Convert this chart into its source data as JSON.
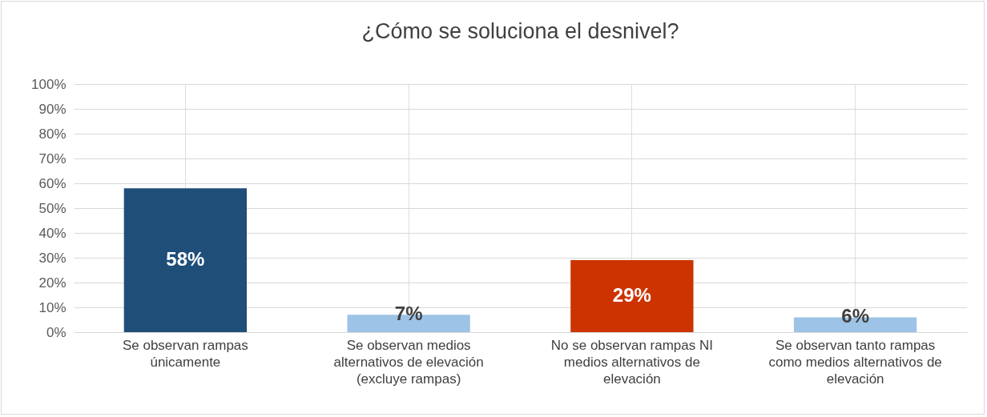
{
  "chart_data": {
    "type": "bar",
    "title": "¿Cómo se soluciona el desnivel?",
    "categories": [
      "Se observan rampas únicamente",
      "Se observan medios alternativos de elevación (excluye rampas)",
      "No se observan rampas NI medios alternativos de elevación",
      "Se observan tanto rampas como medios alternativos de elevación"
    ],
    "values": [
      58,
      7,
      29,
      6
    ],
    "colors": [
      "#1f4e79",
      "#9dc3e6",
      "#cc3300",
      "#9dc3e6"
    ],
    "value_labels": [
      "58%",
      "7%",
      "29%",
      "6%"
    ],
    "ylim": [
      0,
      100
    ],
    "yticks": [
      {
        "value": 0,
        "label": "0%"
      },
      {
        "value": 10,
        "label": "10%"
      },
      {
        "value": 20,
        "label": "20%"
      },
      {
        "value": 30,
        "label": "30%"
      },
      {
        "value": 40,
        "label": "40%"
      },
      {
        "value": 50,
        "label": "50%"
      },
      {
        "value": 60,
        "label": "60%"
      },
      {
        "value": 70,
        "label": "70%"
      },
      {
        "value": 80,
        "label": "80%"
      },
      {
        "value": 90,
        "label": "90%"
      },
      {
        "value": 100,
        "label": "100%"
      }
    ],
    "grid": true
  }
}
